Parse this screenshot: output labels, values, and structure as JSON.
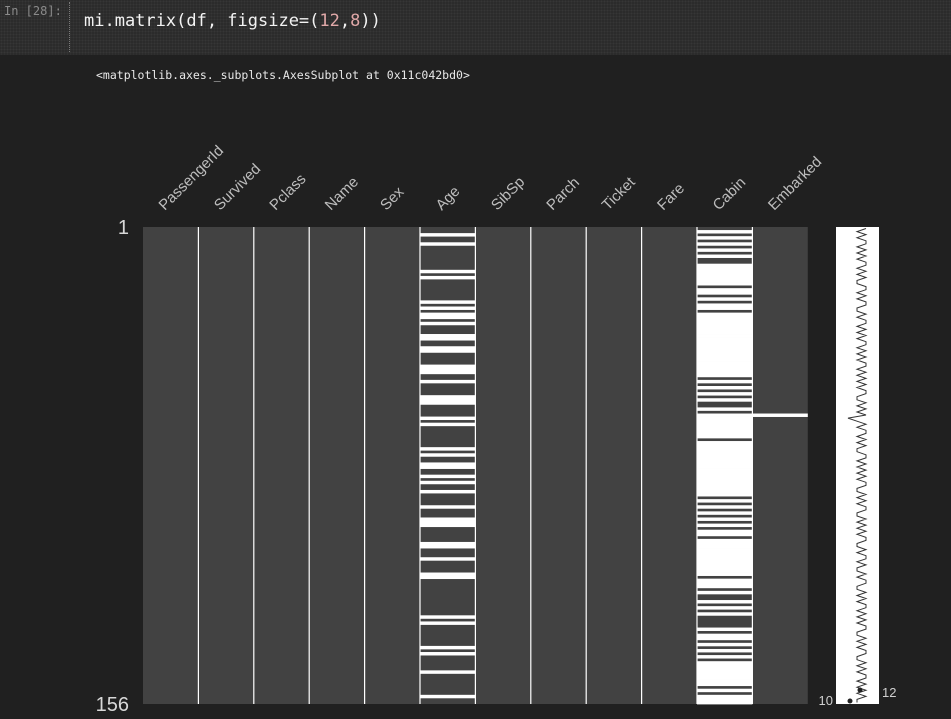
{
  "cell": {
    "prompt": "In [28]:",
    "code_fn": "mi.matrix(df, figsize=(",
    "code_n1": "12",
    "code_comma": ",",
    "code_n2": "8",
    "code_end": "))",
    "output_text": "<matplotlib.axes._subplots.AxesSubplot at 0x11c042bd0>"
  },
  "chart_data": {
    "type": "heatmap",
    "title": "",
    "columns": [
      "PassengerId",
      "Survived",
      "Pclass",
      "Name",
      "Sex",
      "Age",
      "SibSp",
      "Parch",
      "Ticket",
      "Fare",
      "Cabin",
      "Embarked"
    ],
    "row_count": 156,
    "y_tick_labels": [
      "1",
      "156"
    ],
    "colors": {
      "present": "#424242",
      "missing": "#ffffff",
      "background": "#202020"
    },
    "missing_rows": {
      "PassengerId": [],
      "Survived": [],
      "Pclass": [],
      "Name": [],
      "Sex": [],
      "Age": [
        3,
        6,
        15,
        17,
        25,
        27,
        29,
        30,
        32,
        36,
        37,
        40,
        41,
        46,
        47,
        48,
        51,
        56,
        57,
        58,
        63,
        65,
        73,
        75,
        78,
        79,
        82,
        84,
        87,
        92,
        96,
        97,
        98,
        104,
        105,
        109,
        114,
        115,
        128,
        130,
        138,
        140,
        146,
        154
      ],
      "SibSp": [],
      "Parch": [],
      "Ticket": [],
      "Fare": [],
      "Cabin": {
        "present_rows": [
          1,
          3,
          5,
          7,
          9,
          11,
          12,
          20,
          23,
          25,
          28,
          50,
          52,
          54,
          56,
          58,
          59,
          61,
          70,
          89,
          91,
          93,
          95,
          97,
          99,
          102,
          115,
          119,
          121,
          122,
          124,
          126,
          128,
          129,
          130,
          131,
          133,
          136,
          138,
          140,
          142,
          151,
          153
        ]
      },
      "Embarked": [
        62
      ]
    },
    "sparkline": {
      "min_label": "10",
      "max_label": "12",
      "completeness": [
        12,
        11,
        12,
        11,
        12,
        12,
        11,
        12,
        11,
        12,
        11,
        12,
        12,
        11,
        12,
        11,
        12,
        11,
        11,
        12,
        12,
        11,
        12,
        11,
        12,
        12,
        11,
        11,
        12,
        11,
        12,
        12,
        11,
        12,
        11,
        12,
        11,
        12,
        12,
        11,
        12,
        11,
        12,
        11,
        12,
        12,
        11,
        12,
        11,
        12,
        11,
        12,
        11,
        12,
        12,
        11,
        11,
        12,
        11,
        12,
        11,
        12,
        10,
        11,
        12,
        11,
        12,
        12,
        11,
        12,
        11,
        12,
        11,
        11,
        12,
        12,
        11,
        12,
        11,
        12,
        11,
        12,
        11,
        12,
        12,
        11,
        11,
        12,
        11,
        12,
        11,
        12,
        12,
        11,
        11,
        12,
        11,
        12,
        11,
        12,
        11,
        12,
        12,
        11,
        11,
        12,
        11,
        12,
        12,
        11,
        12,
        11,
        11,
        12,
        11,
        12,
        12,
        11,
        11,
        12,
        11,
        12,
        11,
        12,
        12,
        11,
        12,
        11,
        12,
        11,
        12,
        12,
        11,
        11,
        12,
        11,
        12,
        11,
        12,
        12,
        11,
        11,
        12,
        11,
        12,
        11,
        12,
        12,
        11,
        12,
        11,
        12,
        11,
        12,
        11,
        11
      ]
    }
  }
}
